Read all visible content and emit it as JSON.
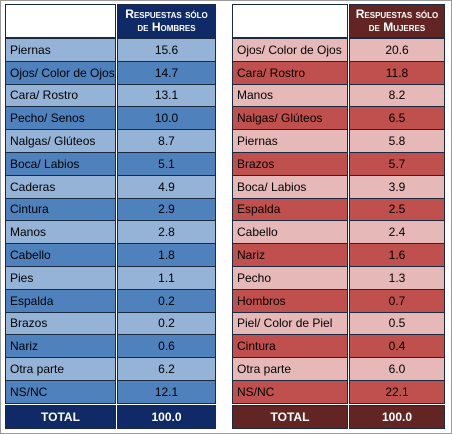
{
  "tables": [
    {
      "header": "Respuestas sólo de Hombres",
      "rows": [
        [
          "Piernas",
          "15.6"
        ],
        [
          "Ojos/ Color de Ojos",
          "14.7"
        ],
        [
          "Cara/ Rostro",
          "13.1"
        ],
        [
          "Pecho/ Senos",
          "10.0"
        ],
        [
          "Nalgas/ Glúteos",
          "8.7"
        ],
        [
          "Boca/ Labios",
          "5.1"
        ],
        [
          "Caderas",
          "4.9"
        ],
        [
          "Cintura",
          "2.9"
        ],
        [
          "Manos",
          "2.8"
        ],
        [
          "Cabello",
          "1.8"
        ],
        [
          "Pies",
          "1.1"
        ],
        [
          "Espalda",
          "0.2"
        ],
        [
          "Brazos",
          "0.2"
        ],
        [
          "Nariz",
          "0.6"
        ],
        [
          "Otra parte",
          "6.2"
        ],
        [
          "NS/NC",
          "12.1"
        ]
      ],
      "total": [
        "TOTAL",
        "100.0"
      ]
    },
    {
      "header": "Respuestas sólo de Mujeres",
      "rows": [
        [
          "Ojos/ Color de Ojos",
          "20.6"
        ],
        [
          "Cara/ Rostro",
          "11.8"
        ],
        [
          "Manos",
          "8.2"
        ],
        [
          "Nalgas/ Glúteos",
          "6.5"
        ],
        [
          "Piernas",
          "5.8"
        ],
        [
          "Brazos",
          "5.7"
        ],
        [
          "Boca/ Labios",
          "3.9"
        ],
        [
          "Espalda",
          "2.5"
        ],
        [
          "Cabello",
          "2.4"
        ],
        [
          "Nariz",
          "1.6"
        ],
        [
          "Pecho",
          "1.3"
        ],
        [
          "Hombros",
          "0.7"
        ],
        [
          "Piel/ Color de Piel",
          "0.5"
        ],
        [
          "Cintura",
          "0.4"
        ],
        [
          "Otra parte",
          "6.0"
        ],
        [
          "NS/NC",
          "22.1"
        ]
      ],
      "total": [
        "TOTAL",
        "100.0"
      ]
    }
  ]
}
